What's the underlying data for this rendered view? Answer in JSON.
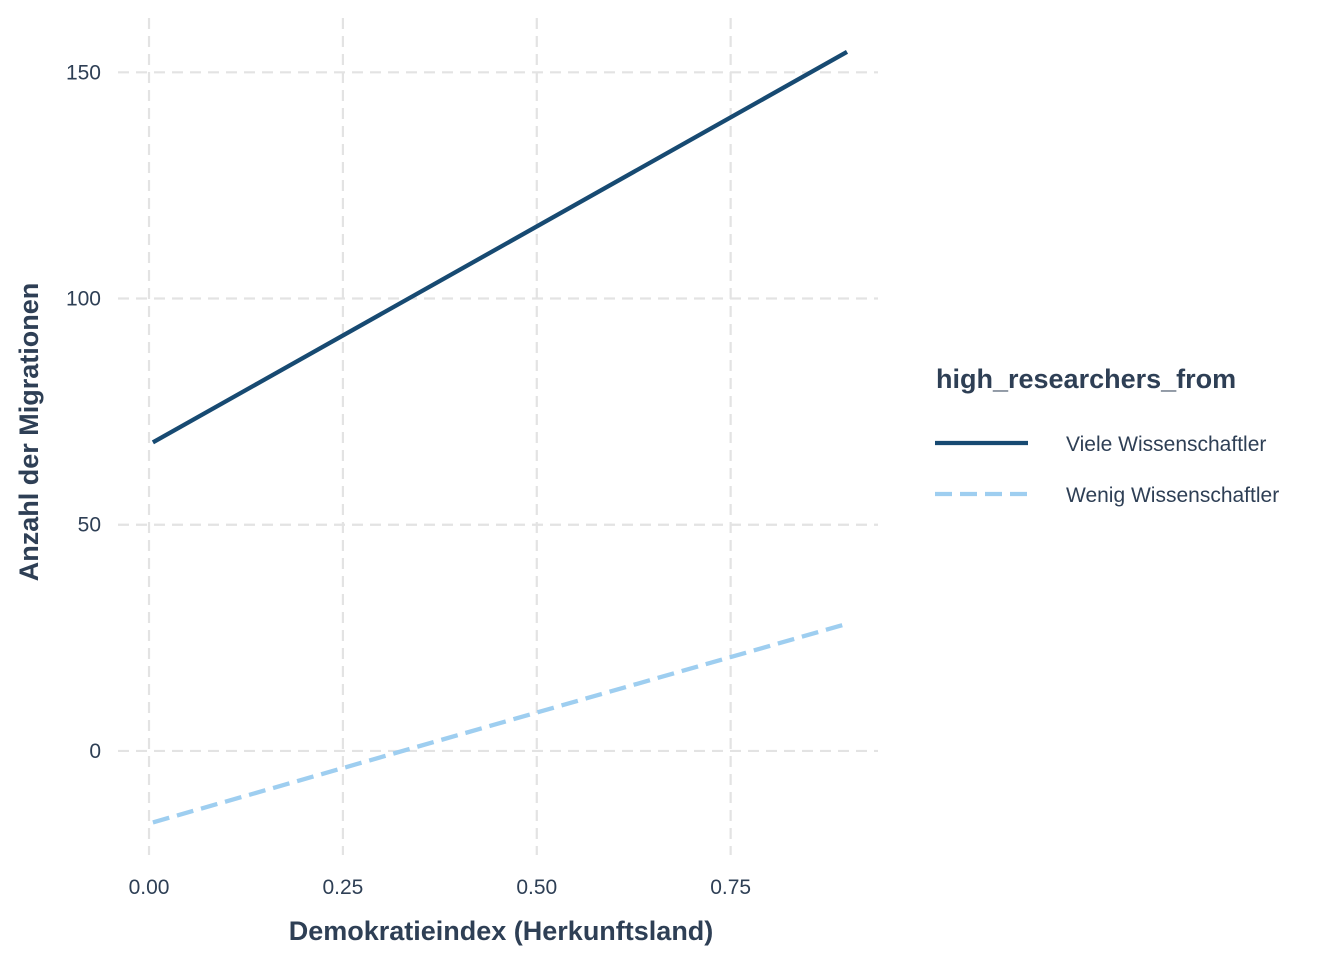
{
  "chart_data": {
    "type": "line",
    "title": "",
    "xlabel": "Demokratieindex (Herkunftsland)",
    "ylabel": "Anzahl der Migrationen",
    "xlim": [
      -0.04,
      0.94
    ],
    "ylim": [
      -23,
      162
    ],
    "xticks": [
      0.0,
      0.25,
      0.5,
      0.75
    ],
    "xtick_labels": [
      "0.00",
      "0.25",
      "0.50",
      "0.75"
    ],
    "yticks": [
      0,
      50,
      100,
      150
    ],
    "ytick_labels": [
      "0",
      "50",
      "100",
      "150"
    ],
    "grid": true,
    "grid_style": "dashed",
    "legend": {
      "title": "high_researchers_from",
      "position": "right"
    },
    "series": [
      {
        "name": "Viele Wissenschaftler",
        "color": "#174A72",
        "line_style": "solid",
        "x": [
          0.005,
          0.9
        ],
        "y": [
          68.2,
          154.5
        ]
      },
      {
        "name": "Wenig Wissenschaftler",
        "color": "#9ECEF0",
        "line_style": "dashed",
        "x": [
          0.005,
          0.9
        ],
        "y": [
          -15.8,
          28.1
        ]
      }
    ],
    "colors": {
      "text": "#2E3F55",
      "tick_text": "#2E3F55",
      "grid": "#E3E3E3"
    }
  }
}
